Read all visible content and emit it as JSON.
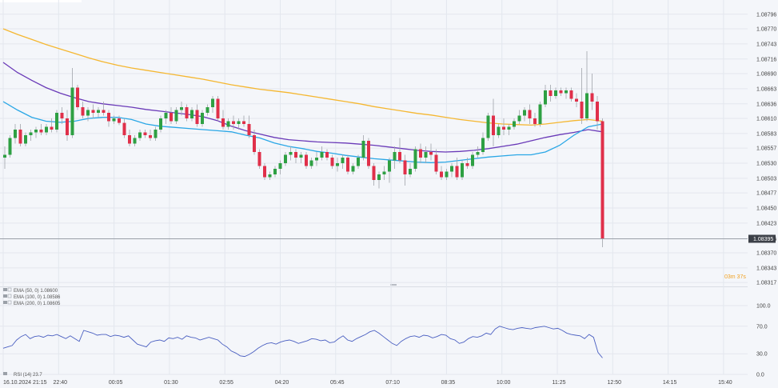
{
  "chart_data": {
    "type": "candlestick",
    "price_panel": {
      "y_ticks": [
        "1.08796",
        "1.08770",
        "1.08743",
        "1.08716",
        "1.08690",
        "1.08663",
        "1.08636",
        "1.08610",
        "1.08583",
        "1.08557",
        "1.08530",
        "1.08503",
        "1.08477",
        "1.08450",
        "1.08423",
        "1.08395",
        "1.08370",
        "1.08343",
        "1.08317"
      ],
      "ylim": [
        1.0831,
        1.0881
      ],
      "current_price": "1.08395",
      "countdown": "03m 37s",
      "colors": {
        "up": "#2ea043",
        "down": "#e0304a",
        "ema50": "#2aa7e6",
        "ema100": "#6a3ab8",
        "ema200": "#f5b731",
        "price_line": "#9aa0a8"
      },
      "legend": [
        {
          "label": "EMA (50, 0) 1.08600",
          "color": "#2aa7e6"
        },
        {
          "label": "EMA (100, 0) 1.08586",
          "color": "#6a3ab8"
        },
        {
          "label": "EMA (200, 0) 1.08605",
          "color": "#f5b731"
        }
      ],
      "candles": [
        {
          "o": 1.0854,
          "h": 1.0856,
          "l": 1.0852,
          "c": 1.08545
        },
        {
          "o": 1.08545,
          "h": 1.0858,
          "l": 1.0854,
          "c": 1.08575
        },
        {
          "o": 1.08575,
          "h": 1.086,
          "l": 1.08565,
          "c": 1.0859
        },
        {
          "o": 1.0859,
          "h": 1.086,
          "l": 1.0856,
          "c": 1.08565
        },
        {
          "o": 1.08565,
          "h": 1.08585,
          "l": 1.0856,
          "c": 1.0858
        },
        {
          "o": 1.0858,
          "h": 1.0859,
          "l": 1.0857,
          "c": 1.08585
        },
        {
          "o": 1.08585,
          "h": 1.08595,
          "l": 1.08575,
          "c": 1.0859
        },
        {
          "o": 1.0859,
          "h": 1.086,
          "l": 1.0858,
          "c": 1.08585
        },
        {
          "o": 1.08585,
          "h": 1.086,
          "l": 1.0858,
          "c": 1.08595
        },
        {
          "o": 1.08595,
          "h": 1.0861,
          "l": 1.08585,
          "c": 1.0859
        },
        {
          "o": 1.0859,
          "h": 1.08625,
          "l": 1.08585,
          "c": 1.0862
        },
        {
          "o": 1.0862,
          "h": 1.0863,
          "l": 1.086,
          "c": 1.0861
        },
        {
          "o": 1.0861,
          "h": 1.08625,
          "l": 1.0857,
          "c": 1.0858
        },
        {
          "o": 1.0858,
          "h": 1.087,
          "l": 1.08575,
          "c": 1.08665
        },
        {
          "o": 1.08665,
          "h": 1.0867,
          "l": 1.08625,
          "c": 1.0863
        },
        {
          "o": 1.0863,
          "h": 1.0864,
          "l": 1.0861,
          "c": 1.08615
        },
        {
          "o": 1.08615,
          "h": 1.0863,
          "l": 1.08605,
          "c": 1.08625
        },
        {
          "o": 1.08625,
          "h": 1.08635,
          "l": 1.0861,
          "c": 1.0862
        },
        {
          "o": 1.0862,
          "h": 1.0863,
          "l": 1.08612,
          "c": 1.08625
        },
        {
          "o": 1.08625,
          "h": 1.0864,
          "l": 1.08615,
          "c": 1.0862
        },
        {
          "o": 1.0862,
          "h": 1.08625,
          "l": 1.08595,
          "c": 1.08605
        },
        {
          "o": 1.08605,
          "h": 1.08615,
          "l": 1.086,
          "c": 1.0861
        },
        {
          "o": 1.0861,
          "h": 1.08615,
          "l": 1.08598,
          "c": 1.08602
        },
        {
          "o": 1.08602,
          "h": 1.0861,
          "l": 1.08575,
          "c": 1.0858
        },
        {
          "o": 1.0858,
          "h": 1.0859,
          "l": 1.0856,
          "c": 1.08565
        },
        {
          "o": 1.08565,
          "h": 1.0858,
          "l": 1.0856,
          "c": 1.08575
        },
        {
          "o": 1.08575,
          "h": 1.0859,
          "l": 1.0857,
          "c": 1.08585
        },
        {
          "o": 1.08585,
          "h": 1.0859,
          "l": 1.08575,
          "c": 1.0858
        },
        {
          "o": 1.0858,
          "h": 1.0859,
          "l": 1.0857,
          "c": 1.08575
        },
        {
          "o": 1.08575,
          "h": 1.08595,
          "l": 1.0857,
          "c": 1.0859
        },
        {
          "o": 1.0859,
          "h": 1.08615,
          "l": 1.08585,
          "c": 1.0861
        },
        {
          "o": 1.0861,
          "h": 1.08625,
          "l": 1.086,
          "c": 1.0862
        },
        {
          "o": 1.0862,
          "h": 1.0863,
          "l": 1.086,
          "c": 1.08605
        },
        {
          "o": 1.08605,
          "h": 1.0863,
          "l": 1.086,
          "c": 1.08625
        },
        {
          "o": 1.08625,
          "h": 1.0864,
          "l": 1.08615,
          "c": 1.0863
        },
        {
          "o": 1.0863,
          "h": 1.08635,
          "l": 1.08605,
          "c": 1.0861
        },
        {
          "o": 1.0861,
          "h": 1.0863,
          "l": 1.08605,
          "c": 1.08625
        },
        {
          "o": 1.08625,
          "h": 1.08635,
          "l": 1.08595,
          "c": 1.086
        },
        {
          "o": 1.086,
          "h": 1.08625,
          "l": 1.08595,
          "c": 1.0862
        },
        {
          "o": 1.0862,
          "h": 1.08635,
          "l": 1.08615,
          "c": 1.0863
        },
        {
          "o": 1.0863,
          "h": 1.0865,
          "l": 1.0862,
          "c": 1.08645
        },
        {
          "o": 1.08645,
          "h": 1.0865,
          "l": 1.08605,
          "c": 1.0861
        },
        {
          "o": 1.0861,
          "h": 1.08625,
          "l": 1.0859,
          "c": 1.08595
        },
        {
          "o": 1.08595,
          "h": 1.0861,
          "l": 1.0859,
          "c": 1.08605
        },
        {
          "o": 1.08605,
          "h": 1.08615,
          "l": 1.0859,
          "c": 1.086
        },
        {
          "o": 1.086,
          "h": 1.0861,
          "l": 1.0859,
          "c": 1.08605
        },
        {
          "o": 1.08605,
          "h": 1.08615,
          "l": 1.08595,
          "c": 1.086
        },
        {
          "o": 1.086,
          "h": 1.08615,
          "l": 1.08575,
          "c": 1.0858
        },
        {
          "o": 1.0858,
          "h": 1.0859,
          "l": 1.08545,
          "c": 1.0855
        },
        {
          "o": 1.0855,
          "h": 1.08555,
          "l": 1.0852,
          "c": 1.08525
        },
        {
          "o": 1.08525,
          "h": 1.0853,
          "l": 1.085,
          "c": 1.08505
        },
        {
          "o": 1.08505,
          "h": 1.08515,
          "l": 1.085,
          "c": 1.0851
        },
        {
          "o": 1.0851,
          "h": 1.08525,
          "l": 1.08505,
          "c": 1.0852
        },
        {
          "o": 1.0852,
          "h": 1.08535,
          "l": 1.0851,
          "c": 1.0853
        },
        {
          "o": 1.0853,
          "h": 1.0855,
          "l": 1.08525,
          "c": 1.08545
        },
        {
          "o": 1.08545,
          "h": 1.0856,
          "l": 1.08535,
          "c": 1.0855
        },
        {
          "o": 1.0855,
          "h": 1.08555,
          "l": 1.0853,
          "c": 1.0854
        },
        {
          "o": 1.0854,
          "h": 1.0855,
          "l": 1.0853,
          "c": 1.08545
        },
        {
          "o": 1.08545,
          "h": 1.0855,
          "l": 1.0852,
          "c": 1.08525
        },
        {
          "o": 1.08525,
          "h": 1.0854,
          "l": 1.0852,
          "c": 1.08535
        },
        {
          "o": 1.08535,
          "h": 1.0855,
          "l": 1.08525,
          "c": 1.0854
        },
        {
          "o": 1.0854,
          "h": 1.0856,
          "l": 1.08535,
          "c": 1.0855
        },
        {
          "o": 1.0855,
          "h": 1.08555,
          "l": 1.08535,
          "c": 1.0854
        },
        {
          "o": 1.0854,
          "h": 1.08545,
          "l": 1.0852,
          "c": 1.08525
        },
        {
          "o": 1.08525,
          "h": 1.0854,
          "l": 1.08515,
          "c": 1.0853
        },
        {
          "o": 1.0853,
          "h": 1.08545,
          "l": 1.0852,
          "c": 1.0854
        },
        {
          "o": 1.0854,
          "h": 1.08545,
          "l": 1.0851,
          "c": 1.08515
        },
        {
          "o": 1.08515,
          "h": 1.0853,
          "l": 1.0851,
          "c": 1.08525
        },
        {
          "o": 1.08525,
          "h": 1.08545,
          "l": 1.0852,
          "c": 1.0854
        },
        {
          "o": 1.0854,
          "h": 1.0858,
          "l": 1.08535,
          "c": 1.0857
        },
        {
          "o": 1.0857,
          "h": 1.08575,
          "l": 1.0852,
          "c": 1.08525
        },
        {
          "o": 1.08525,
          "h": 1.0853,
          "l": 1.0849,
          "c": 1.085
        },
        {
          "o": 1.085,
          "h": 1.08515,
          "l": 1.08485,
          "c": 1.0851
        },
        {
          "o": 1.0851,
          "h": 1.08525,
          "l": 1.085,
          "c": 1.08515
        },
        {
          "o": 1.08515,
          "h": 1.0854,
          "l": 1.08495,
          "c": 1.08535
        },
        {
          "o": 1.08535,
          "h": 1.0856,
          "l": 1.0852,
          "c": 1.0855
        },
        {
          "o": 1.0855,
          "h": 1.08575,
          "l": 1.0853,
          "c": 1.08535
        },
        {
          "o": 1.08535,
          "h": 1.08545,
          "l": 1.0849,
          "c": 1.0851
        },
        {
          "o": 1.0851,
          "h": 1.0853,
          "l": 1.08505,
          "c": 1.0852
        },
        {
          "o": 1.0852,
          "h": 1.0856,
          "l": 1.08515,
          "c": 1.08555
        },
        {
          "o": 1.08555,
          "h": 1.08565,
          "l": 1.0853,
          "c": 1.0854
        },
        {
          "o": 1.0854,
          "h": 1.0856,
          "l": 1.0853,
          "c": 1.0855
        },
        {
          "o": 1.0855,
          "h": 1.08565,
          "l": 1.08535,
          "c": 1.08545
        },
        {
          "o": 1.08545,
          "h": 1.08555,
          "l": 1.0851,
          "c": 1.08515
        },
        {
          "o": 1.08515,
          "h": 1.08525,
          "l": 1.085,
          "c": 1.08505
        },
        {
          "o": 1.08505,
          "h": 1.0852,
          "l": 1.085,
          "c": 1.08515
        },
        {
          "o": 1.08515,
          "h": 1.0853,
          "l": 1.08505,
          "c": 1.08525
        },
        {
          "o": 1.08525,
          "h": 1.0854,
          "l": 1.085,
          "c": 1.08505
        },
        {
          "o": 1.08505,
          "h": 1.08535,
          "l": 1.085,
          "c": 1.0853
        },
        {
          "o": 1.0853,
          "h": 1.0854,
          "l": 1.0852,
          "c": 1.08525
        },
        {
          "o": 1.08525,
          "h": 1.0855,
          "l": 1.0852,
          "c": 1.08545
        },
        {
          "o": 1.08545,
          "h": 1.0856,
          "l": 1.0854,
          "c": 1.0855
        },
        {
          "o": 1.0855,
          "h": 1.08585,
          "l": 1.08545,
          "c": 1.08575
        },
        {
          "o": 1.08575,
          "h": 1.0862,
          "l": 1.0857,
          "c": 1.08615
        },
        {
          "o": 1.08615,
          "h": 1.08645,
          "l": 1.0856,
          "c": 1.0858
        },
        {
          "o": 1.0858,
          "h": 1.086,
          "l": 1.08575,
          "c": 1.08595
        },
        {
          "o": 1.08595,
          "h": 1.0861,
          "l": 1.0858,
          "c": 1.0859
        },
        {
          "o": 1.0859,
          "h": 1.086,
          "l": 1.0858,
          "c": 1.08595
        },
        {
          "o": 1.08595,
          "h": 1.0861,
          "l": 1.0859,
          "c": 1.08605
        },
        {
          "o": 1.08605,
          "h": 1.08625,
          "l": 1.086,
          "c": 1.08615
        },
        {
          "o": 1.08615,
          "h": 1.0863,
          "l": 1.08605,
          "c": 1.08625
        },
        {
          "o": 1.08625,
          "h": 1.08635,
          "l": 1.086,
          "c": 1.0861
        },
        {
          "o": 1.0861,
          "h": 1.0862,
          "l": 1.08595,
          "c": 1.086
        },
        {
          "o": 1.086,
          "h": 1.0864,
          "l": 1.08595,
          "c": 1.08635
        },
        {
          "o": 1.08635,
          "h": 1.0867,
          "l": 1.0863,
          "c": 1.0866
        },
        {
          "o": 1.0866,
          "h": 1.0867,
          "l": 1.0864,
          "c": 1.0865
        },
        {
          "o": 1.0865,
          "h": 1.08665,
          "l": 1.08645,
          "c": 1.0866
        },
        {
          "o": 1.0866,
          "h": 1.08665,
          "l": 1.0865,
          "c": 1.08655
        },
        {
          "o": 1.08655,
          "h": 1.08665,
          "l": 1.08645,
          "c": 1.0866
        },
        {
          "o": 1.0866,
          "h": 1.08665,
          "l": 1.0864,
          "c": 1.08645
        },
        {
          "o": 1.08645,
          "h": 1.08655,
          "l": 1.0863,
          "c": 1.0864
        },
        {
          "o": 1.0864,
          "h": 1.087,
          "l": 1.086,
          "c": 1.0861
        },
        {
          "o": 1.0861,
          "h": 1.0873,
          "l": 1.08605,
          "c": 1.08655
        },
        {
          "o": 1.08655,
          "h": 1.0869,
          "l": 1.08625,
          "c": 1.0864
        },
        {
          "o": 1.0864,
          "h": 1.0865,
          "l": 1.0859,
          "c": 1.08605
        },
        {
          "o": 1.08605,
          "h": 1.0861,
          "l": 1.0838,
          "c": 1.08395
        }
      ]
    },
    "ema_series": {
      "ema50": [
        1.0864,
        1.08625,
        1.08612,
        1.08605,
        1.08603,
        1.08605,
        1.0861,
        1.08612,
        1.08612,
        1.08608,
        1.086,
        1.08596,
        1.08594,
        1.08592,
        1.0859,
        1.08588,
        1.08586,
        1.0858,
        1.08575,
        1.08566,
        1.0856,
        1.08556,
        1.08551,
        1.08548,
        1.08544,
        1.08541,
        1.08538,
        1.08536,
        1.08534,
        1.08532,
        1.08531,
        1.08532,
        1.08535,
        1.08538,
        1.08541,
        1.08543,
        1.08545,
        1.08545,
        1.0855,
        1.08562,
        1.0858,
        1.08595,
        1.086
      ],
      "ema100": [
        1.0871,
        1.08692,
        1.08678,
        1.08665,
        1.08655,
        1.08647,
        1.0864,
        1.08636,
        1.08633,
        1.0863,
        1.08626,
        1.08623,
        1.0862,
        1.08617,
        1.08613,
        1.08606,
        1.08596,
        1.08588,
        1.08582,
        1.08576,
        1.08572,
        1.0857,
        1.08568,
        1.08567,
        1.08566,
        1.08564,
        1.08562,
        1.08559,
        1.08556,
        1.08553,
        1.08551,
        1.0855,
        1.08551,
        1.08553,
        1.08556,
        1.0856,
        1.08564,
        1.0857,
        1.08576,
        1.08581,
        1.08585,
        1.0859,
        1.08586
      ],
      "ema200": [
        1.0877,
        1.0876,
        1.08751,
        1.08742,
        1.08734,
        1.08726,
        1.08718,
        1.08711,
        1.08705,
        1.087,
        1.08696,
        1.08692,
        1.08688,
        1.08684,
        1.0868,
        1.08675,
        1.0867,
        1.08666,
        1.08662,
        1.08659,
        1.08656,
        1.08652,
        1.08648,
        1.08644,
        1.0864,
        1.08636,
        1.08631,
        1.08627,
        1.08623,
        1.08619,
        1.08616,
        1.08612,
        1.08608,
        1.08605,
        1.08602,
        1.086,
        1.08599,
        1.08598,
        1.086,
        1.08603,
        1.08606,
        1.08608,
        1.08605
      ]
    },
    "rsi_panel": {
      "label": "RSI (14) 23.7",
      "y_ticks": [
        "100.0",
        "70.0",
        "30.0",
        "0.0"
      ],
      "ylim": [
        0,
        100
      ],
      "color": "#4a5fc1",
      "values": [
        38,
        40,
        42,
        50,
        55,
        58,
        52,
        55,
        56,
        54,
        57,
        56,
        58,
        55,
        52,
        56,
        52,
        48,
        64,
        62,
        60,
        57,
        58,
        58,
        55,
        57,
        56,
        54,
        56,
        50,
        44,
        42,
        40,
        47,
        49,
        50,
        48,
        53,
        52,
        54,
        51,
        56,
        54,
        53,
        50,
        52,
        54,
        52,
        50,
        44,
        40,
        34,
        31,
        27,
        26,
        29,
        33,
        38,
        42,
        45,
        46,
        44,
        47,
        49,
        50,
        48,
        45,
        47,
        49,
        52,
        51,
        49,
        50,
        46,
        47,
        52,
        56,
        50,
        48,
        52,
        55,
        58,
        62,
        64,
        60,
        55,
        50,
        45,
        42,
        48,
        52,
        55,
        56,
        54,
        57,
        56,
        53,
        55,
        58,
        57,
        52,
        50,
        45,
        47,
        52,
        55,
        54,
        56,
        60,
        58,
        66,
        70,
        68,
        66,
        65,
        67,
        68,
        67,
        66,
        68,
        69,
        70,
        68,
        66,
        67,
        64,
        60,
        58,
        57,
        56,
        52,
        58,
        54,
        32,
        24
      ]
    },
    "x_ticks": [
      "16.10.2024 21:15",
      "22:40",
      "00:05",
      "01:30",
      "02:55",
      "04:20",
      "05:45",
      "07:10",
      "08:35",
      "10:00",
      "11:25",
      "12:50",
      "14:15",
      "15:40"
    ]
  }
}
